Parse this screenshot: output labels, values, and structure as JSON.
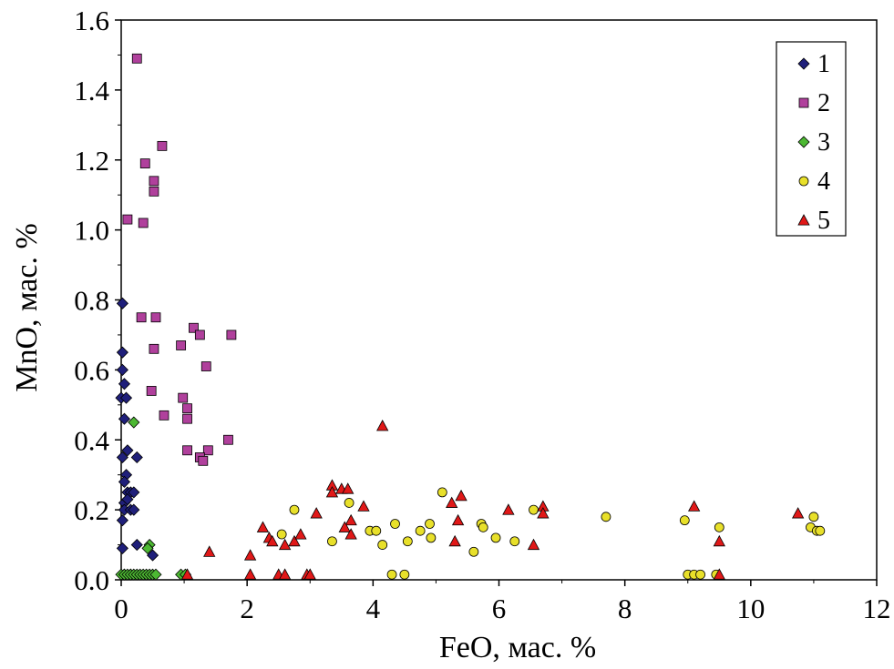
{
  "chart_data": {
    "type": "scatter",
    "title": "",
    "xlabel": "FeO, мас. %",
    "ylabel": "MnO, мас. %",
    "xlim": [
      0,
      12
    ],
    "ylim": [
      0,
      1.6
    ],
    "xticks": [
      "0",
      "2",
      "4",
      "6",
      "8",
      "10",
      "12"
    ],
    "yticks": [
      "0.0",
      "0.2",
      "0.4",
      "0.6",
      "0.8",
      "1.0",
      "1.2",
      "1.4",
      "1.6"
    ],
    "grid": false,
    "legend_position": "top-right",
    "series": [
      {
        "name": "1",
        "marker": "diamond",
        "color": "#1f1f7a",
        "points": [
          [
            0.02,
            0.79
          ],
          [
            0.02,
            0.65
          ],
          [
            0.02,
            0.6
          ],
          [
            0.05,
            0.56
          ],
          [
            0.0,
            0.52
          ],
          [
            0.08,
            0.52
          ],
          [
            0.05,
            0.46
          ],
          [
            0.02,
            0.35
          ],
          [
            0.1,
            0.37
          ],
          [
            0.08,
            0.3
          ],
          [
            0.05,
            0.28
          ],
          [
            0.25,
            0.35
          ],
          [
            0.05,
            0.22
          ],
          [
            0.1,
            0.25
          ],
          [
            0.15,
            0.25
          ],
          [
            0.2,
            0.25
          ],
          [
            0.1,
            0.23
          ],
          [
            0.05,
            0.2
          ],
          [
            0.15,
            0.2
          ],
          [
            0.2,
            0.2
          ],
          [
            0.02,
            0.17
          ],
          [
            0.02,
            0.09
          ],
          [
            0.25,
            0.1
          ],
          [
            0.5,
            0.07
          ],
          [
            0.05,
            0.015
          ],
          [
            0.15,
            0.015
          ]
        ]
      },
      {
        "name": "2",
        "marker": "square",
        "color": "#b0409c",
        "points": [
          [
            0.25,
            1.49
          ],
          [
            0.65,
            1.24
          ],
          [
            0.38,
            1.19
          ],
          [
            0.52,
            1.14
          ],
          [
            0.52,
            1.11
          ],
          [
            0.1,
            1.03
          ],
          [
            0.35,
            1.02
          ],
          [
            0.32,
            0.75
          ],
          [
            0.55,
            0.75
          ],
          [
            1.15,
            0.72
          ],
          [
            1.25,
            0.7
          ],
          [
            1.75,
            0.7
          ],
          [
            0.95,
            0.67
          ],
          [
            0.52,
            0.66
          ],
          [
            1.35,
            0.61
          ],
          [
            0.48,
            0.54
          ],
          [
            0.98,
            0.52
          ],
          [
            1.05,
            0.49
          ],
          [
            0.68,
            0.47
          ],
          [
            1.05,
            0.46
          ],
          [
            1.7,
            0.4
          ],
          [
            1.05,
            0.37
          ],
          [
            1.38,
            0.37
          ],
          [
            1.25,
            0.35
          ],
          [
            1.3,
            0.34
          ]
        ]
      },
      {
        "name": "3",
        "marker": "diamond",
        "color": "#4cb832",
        "points": [
          [
            0.2,
            0.45
          ],
          [
            0.45,
            0.1
          ],
          [
            0.42,
            0.09
          ],
          [
            0.0,
            0.015
          ],
          [
            0.05,
            0.015
          ],
          [
            0.1,
            0.015
          ],
          [
            0.15,
            0.015
          ],
          [
            0.2,
            0.015
          ],
          [
            0.25,
            0.015
          ],
          [
            0.3,
            0.015
          ],
          [
            0.35,
            0.015
          ],
          [
            0.4,
            0.015
          ],
          [
            0.45,
            0.015
          ],
          [
            0.5,
            0.015
          ],
          [
            0.55,
            0.015
          ],
          [
            0.95,
            0.015
          ],
          [
            1.02,
            0.015
          ]
        ]
      },
      {
        "name": "4",
        "marker": "circle",
        "color": "#e8e02a",
        "points": [
          [
            2.55,
            0.13
          ],
          [
            2.75,
            0.2
          ],
          [
            3.35,
            0.11
          ],
          [
            3.62,
            0.22
          ],
          [
            3.95,
            0.14
          ],
          [
            4.05,
            0.14
          ],
          [
            4.15,
            0.1
          ],
          [
            4.35,
            0.16
          ],
          [
            4.55,
            0.11
          ],
          [
            4.75,
            0.14
          ],
          [
            4.9,
            0.16
          ],
          [
            4.92,
            0.12
          ],
          [
            5.1,
            0.25
          ],
          [
            5.6,
            0.08
          ],
          [
            5.72,
            0.16
          ],
          [
            5.75,
            0.15
          ],
          [
            5.95,
            0.12
          ],
          [
            6.25,
            0.11
          ],
          [
            6.55,
            0.2
          ],
          [
            7.7,
            0.18
          ],
          [
            8.95,
            0.17
          ],
          [
            9.5,
            0.15
          ],
          [
            10.95,
            0.15
          ],
          [
            11.0,
            0.18
          ],
          [
            11.05,
            0.14
          ],
          [
            11.1,
            0.14
          ],
          [
            4.3,
            0.015
          ],
          [
            4.5,
            0.015
          ],
          [
            9.0,
            0.015
          ],
          [
            9.1,
            0.015
          ],
          [
            9.2,
            0.015
          ],
          [
            9.45,
            0.015
          ]
        ]
      },
      {
        "name": "5",
        "marker": "triangle",
        "color": "#e01818",
        "points": [
          [
            4.15,
            0.44
          ],
          [
            3.35,
            0.27
          ],
          [
            3.5,
            0.26
          ],
          [
            3.6,
            0.26
          ],
          [
            3.35,
            0.25
          ],
          [
            5.4,
            0.24
          ],
          [
            5.25,
            0.22
          ],
          [
            3.85,
            0.21
          ],
          [
            6.15,
            0.2
          ],
          [
            6.7,
            0.21
          ],
          [
            6.7,
            0.19
          ],
          [
            9.1,
            0.21
          ],
          [
            10.75,
            0.19
          ],
          [
            3.1,
            0.19
          ],
          [
            3.65,
            0.17
          ],
          [
            3.55,
            0.15
          ],
          [
            5.35,
            0.17
          ],
          [
            2.25,
            0.15
          ],
          [
            2.35,
            0.12
          ],
          [
            2.4,
            0.11
          ],
          [
            2.75,
            0.11
          ],
          [
            2.85,
            0.13
          ],
          [
            2.6,
            0.1
          ],
          [
            3.65,
            0.13
          ],
          [
            5.3,
            0.11
          ],
          [
            6.55,
            0.1
          ],
          [
            9.5,
            0.11
          ],
          [
            1.4,
            0.08
          ],
          [
            2.05,
            0.07
          ],
          [
            1.05,
            0.015
          ],
          [
            2.05,
            0.015
          ],
          [
            2.5,
            0.015
          ],
          [
            2.6,
            0.015
          ],
          [
            2.95,
            0.015
          ],
          [
            3.0,
            0.015
          ],
          [
            9.5,
            0.015
          ]
        ]
      }
    ]
  }
}
